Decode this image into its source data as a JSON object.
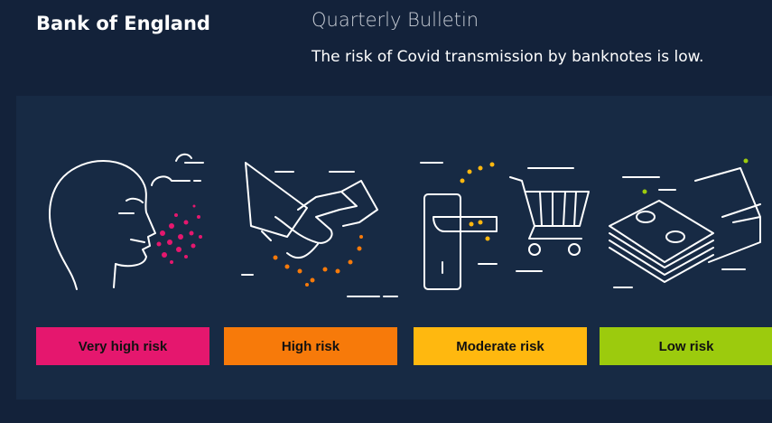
{
  "header": {
    "brand": "Bank of England",
    "publication": "Quarterly Bulletin",
    "headline": "The risk of Covid transmission by banknotes is low."
  },
  "risk_levels": [
    {
      "label": "Very high risk",
      "color": "#e5176e"
    },
    {
      "label": "High risk",
      "color": "#f77a0a"
    },
    {
      "label": "Moderate risk",
      "color": "#ffb80f"
    },
    {
      "label": "Low risk",
      "color": "#9ccb0d"
    }
  ]
}
